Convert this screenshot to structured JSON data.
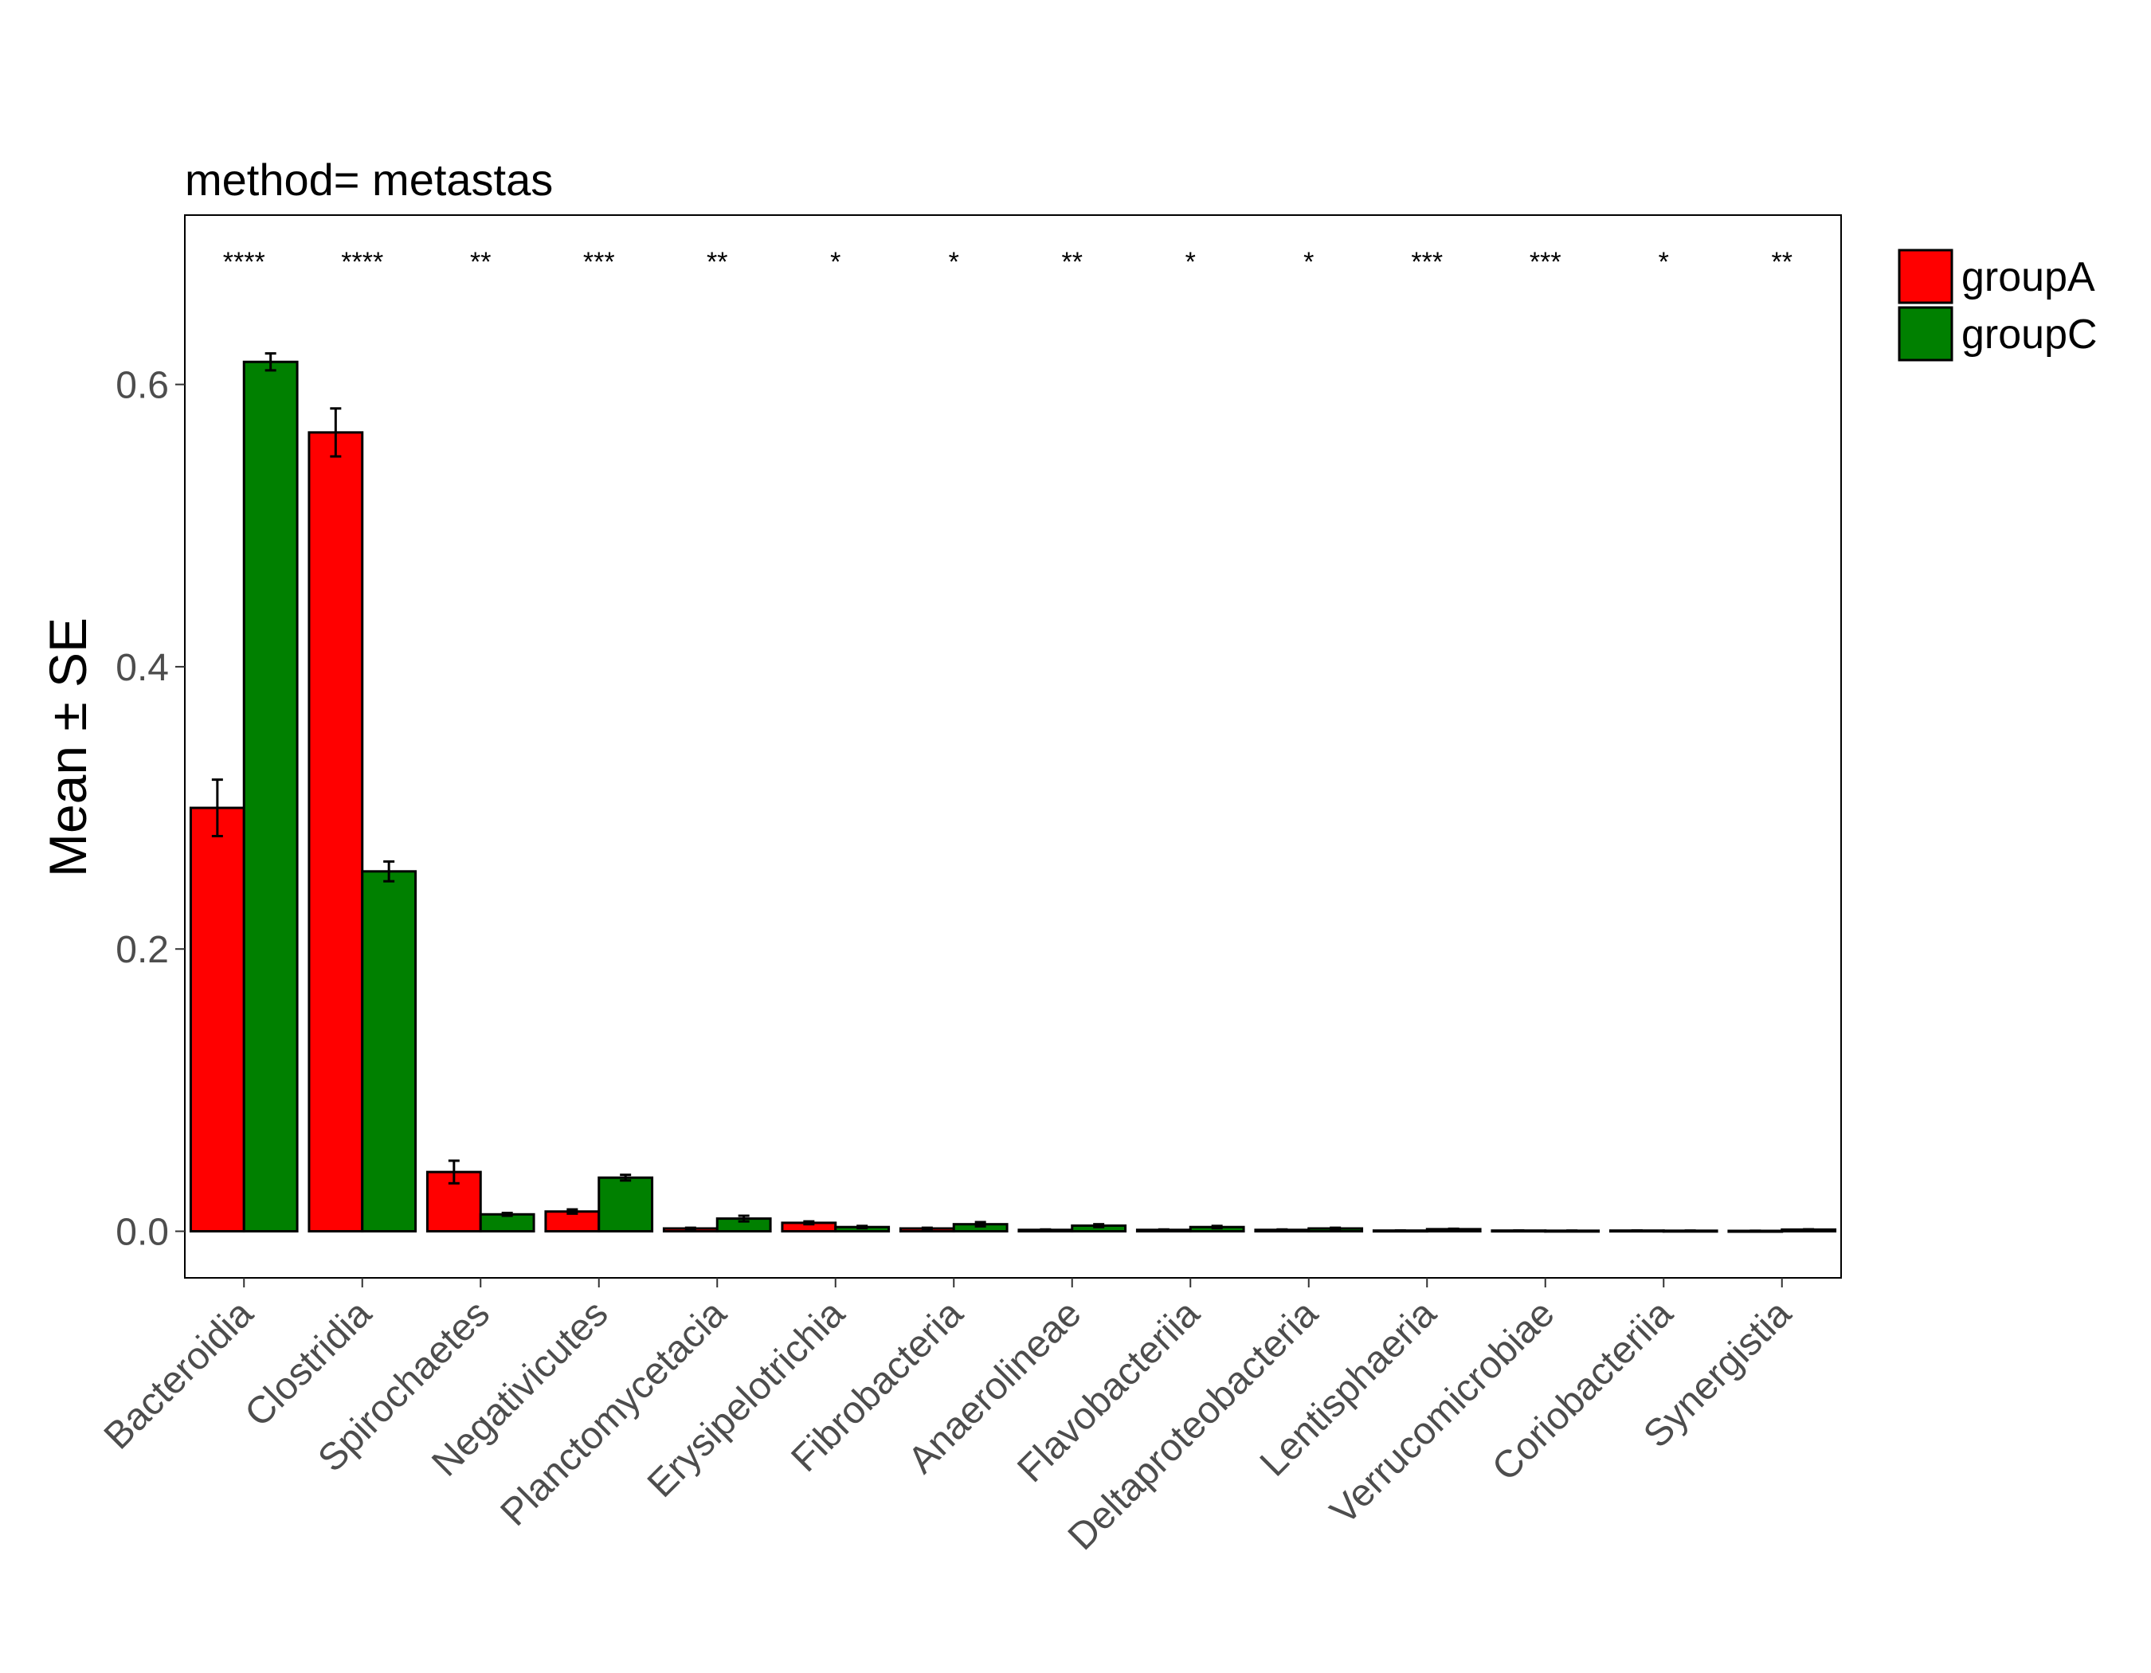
{
  "chart_data": {
    "type": "bar",
    "title": "method= metastas",
    "ylabel": "Mean ± SE",
    "xlabel": "",
    "ylim": [
      -0.033,
      0.72
    ],
    "yticks": [
      0.0,
      0.2,
      0.4,
      0.6
    ],
    "ytick_labels": [
      "0.0",
      "0.2",
      "0.4",
      "0.6"
    ],
    "grid": false,
    "legend_position": "right",
    "categories": [
      "Bacteroidia",
      "Clostridia",
      "Spirochaetes",
      "Negativicutes",
      "Planctomycetacia",
      "Erysipelotrichia",
      "Fibrobacteria",
      "Anaerolineae",
      "Flavobacteriia",
      "Deltaproteobacteria",
      "Lentisphaeria",
      "Verrucomicrobiae",
      "Coriobacteriia",
      "Synergistia"
    ],
    "significance": [
      "****",
      "****",
      "**",
      "***",
      "**",
      "*",
      "*",
      "**",
      "*",
      "*",
      "***",
      "***",
      "*",
      "**"
    ],
    "series": [
      {
        "name": "groupA",
        "color": "#ff0000",
        "values": [
          0.3,
          0.566,
          0.042,
          0.014,
          0.002,
          0.006,
          0.002,
          0.001,
          0.001,
          0.001,
          0.0005,
          0.0005,
          0.0005,
          0.0003
        ],
        "se": [
          0.02,
          0.017,
          0.008,
          0.0015,
          0.0005,
          0.001,
          0.0005,
          0.0003,
          0.0003,
          0.0003,
          0.0001,
          0.0001,
          0.0001,
          0.0001
        ]
      },
      {
        "name": "groupC",
        "color": "#008000",
        "values": [
          0.616,
          0.255,
          0.012,
          0.038,
          0.009,
          0.003,
          0.005,
          0.004,
          0.003,
          0.002,
          0.0015,
          0.0004,
          0.0004,
          0.0012
        ],
        "se": [
          0.006,
          0.007,
          0.001,
          0.002,
          0.002,
          0.0008,
          0.0015,
          0.001,
          0.0008,
          0.0005,
          0.0003,
          0.0001,
          0.0001,
          0.0002
        ]
      }
    ]
  }
}
